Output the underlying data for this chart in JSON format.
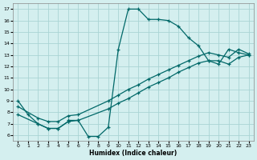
{
  "title": "",
  "xlabel": "Humidex (Indice chaleur)",
  "background_color": "#d4efef",
  "grid_color": "#aad4d4",
  "line_color": "#006868",
  "xlim": [
    -0.5,
    23.5
  ],
  "ylim": [
    5.5,
    17.5
  ],
  "xticks": [
    0,
    1,
    2,
    3,
    4,
    5,
    6,
    7,
    8,
    9,
    10,
    11,
    12,
    13,
    14,
    15,
    16,
    17,
    18,
    19,
    20,
    21,
    22,
    23
  ],
  "yticks": [
    6,
    7,
    8,
    9,
    10,
    11,
    12,
    13,
    14,
    15,
    16,
    17
  ],
  "curve1_x": [
    0,
    1,
    2,
    3,
    4,
    5,
    5,
    6,
    7,
    8,
    9,
    10,
    11,
    12,
    13,
    14,
    15,
    16,
    17,
    18,
    19,
    20,
    21,
    22,
    23
  ],
  "curve1_y": [
    9.0,
    7.8,
    7.0,
    6.6,
    6.6,
    7.2,
    7.3,
    7.3,
    5.9,
    5.9,
    6.7,
    13.5,
    17.0,
    17.0,
    16.1,
    16.1,
    16.0,
    15.5,
    14.5,
    13.8,
    12.5,
    12.2,
    13.5,
    13.2,
    13.0
  ],
  "line2_x": [
    0,
    2,
    3,
    4,
    5,
    6,
    9,
    10,
    11,
    12,
    13,
    14,
    15,
    16,
    17,
    18,
    19,
    20,
    21,
    22,
    23
  ],
  "line2_y": [
    7.8,
    7.0,
    6.6,
    6.6,
    7.2,
    7.3,
    8.3,
    8.8,
    9.2,
    9.7,
    10.2,
    10.6,
    11.0,
    11.5,
    11.9,
    12.3,
    12.5,
    12.5,
    12.2,
    12.8,
    13.0
  ],
  "line3_x": [
    0,
    2,
    3,
    4,
    5,
    6,
    9,
    10,
    11,
    12,
    13,
    14,
    15,
    16,
    17,
    18,
    19,
    20,
    21,
    22,
    23
  ],
  "line3_y": [
    8.5,
    7.5,
    7.2,
    7.2,
    7.7,
    7.8,
    9.0,
    9.5,
    10.0,
    10.4,
    10.9,
    11.3,
    11.7,
    12.1,
    12.5,
    12.9,
    13.2,
    13.0,
    12.8,
    13.5,
    13.1
  ]
}
